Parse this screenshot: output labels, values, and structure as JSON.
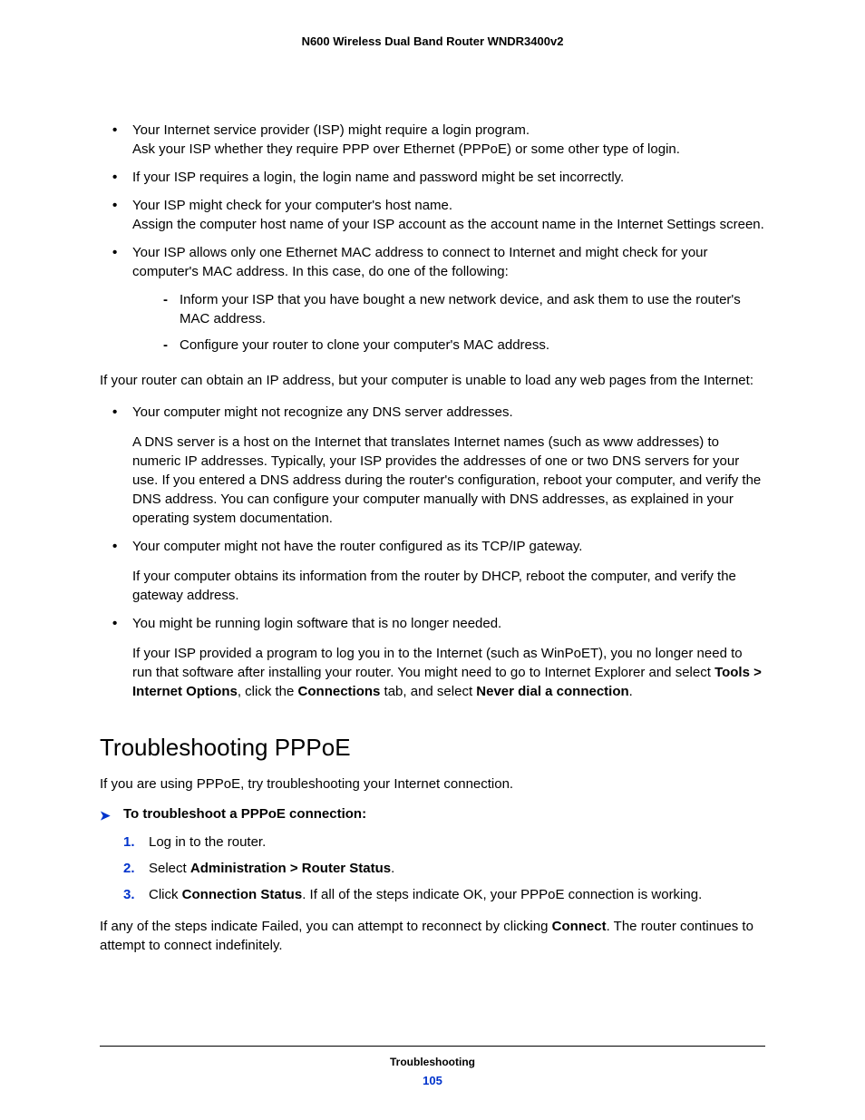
{
  "header": "N600 Wireless Dual Band Router WNDR3400v2",
  "bullets1": {
    "b1a": "Your Internet service provider (ISP) might require a login program.",
    "b1b": "Ask your ISP whether they require PPP over Ethernet (PPPoE) or some other type of login.",
    "b2": "If your ISP requires a login, the login name and password might be set incorrectly.",
    "b3a": "Your ISP might check for your computer's host name.",
    "b3b": "Assign the computer host name of your ISP account as the account name in the Internet Settings screen.",
    "b4": "Your ISP allows only one Ethernet MAC address to connect to Internet and might check for your computer's MAC address. In this case, do one of the following:",
    "s1": "Inform your ISP that you have bought a new network device, and ask them to use the router's MAC address.",
    "s2": "Configure your router to clone your computer's MAC address."
  },
  "mid": {
    "p1": "If your router can obtain an IP address, but your computer is unable to load any web pages from the Internet:",
    "b1": "Your computer might not recognize any DNS server addresses.",
    "b1p": "A DNS server is a host on the Internet that translates Internet names (such as www addresses) to numeric IP addresses. Typically, your ISP provides the addresses of one or two DNS servers for your use. If you entered a DNS address during the router's configuration, reboot your computer, and verify the DNS address. You can configure your computer manually with DNS addresses, as explained in your operating system documentation.",
    "b2": "Your computer might not have the router configured as its TCP/IP gateway.",
    "b2p": "If your computer obtains its information from the router by DHCP, reboot the computer, and verify the gateway address.",
    "b3": "You might be running login software that is no longer needed.",
    "b3p_a": "If your ISP provided a program to log you in to the Internet (such as WinPoET), you no longer need to run that software after installing your router. You might need to go to Internet Explorer and select ",
    "b3p_b": "Tools > Internet Options",
    "b3p_c": ", click the ",
    "b3p_d": "Connections",
    "b3p_e": " tab, and select ",
    "b3p_f": "Never dial a connection",
    "b3p_g": "."
  },
  "section_heading": "Troubleshooting PPPoE",
  "pppoe": {
    "intro": "If you are using PPPoE, try troubleshooting your Internet connection.",
    "arrow": "To troubleshoot a PPPoE connection:",
    "n1": "Log in to the router.",
    "n2a": "Select ",
    "n2b": "Administration > Router Status",
    "n2c": ".",
    "n3a": "Click ",
    "n3b": "Connection Status",
    "n3c": ". If all of the steps indicate OK, your PPPoE connection is working.",
    "outro_a": "If any of the steps indicate Failed, you can attempt to reconnect by clicking ",
    "outro_b": "Connect",
    "outro_c": ". The router continues to attempt to connect indefinitely."
  },
  "footer": {
    "section": "Troubleshooting",
    "page": "105"
  },
  "colors": {
    "accent": "#0033cc",
    "text": "#000000",
    "background": "#ffffff"
  },
  "typography": {
    "body_fontsize": 15,
    "header_fontsize": 13,
    "heading_fontsize": 26,
    "footer_fontsize": 12
  }
}
